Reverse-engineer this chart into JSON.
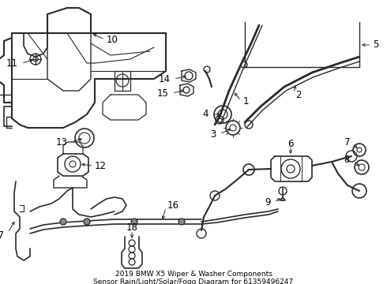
{
  "title1": "2019 BMW X5 Wiper & Washer Components",
  "title2": "Sensor Rain/Light/Solar/Fogg Diagram for 61359496247",
  "bg_color": "#ffffff",
  "line_color": "#2a2a2a",
  "label_color": "#000000",
  "font_size": 8.5,
  "title_font_size": 6.5,
  "figw": 4.9,
  "figh": 3.6,
  "dpi": 100
}
